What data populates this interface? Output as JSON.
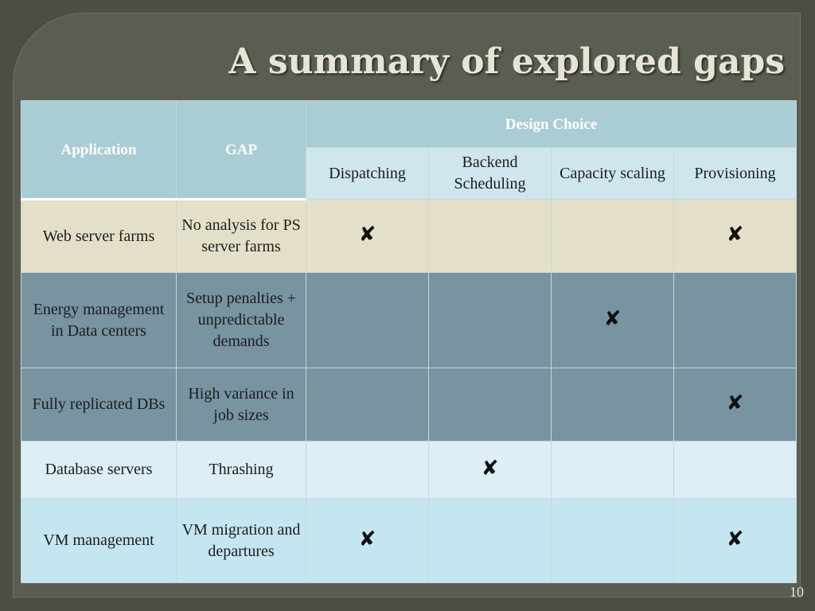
{
  "slide": {
    "title": "A summary of explored gaps",
    "page_number": "10"
  },
  "table": {
    "header": {
      "application": "Application",
      "gap": "GAP",
      "design_choice": "Design Choice",
      "columns": [
        "Dispatching",
        "Backend Scheduling",
        "Capacity scaling",
        "Provisioning"
      ]
    },
    "mark_symbol": "✘",
    "rows": [
      {
        "application": "Web server farms",
        "gap": "No analysis for PS server farms",
        "marks": [
          true,
          false,
          false,
          true
        ]
      },
      {
        "application": "Energy management in Data centers",
        "gap": "Setup penalties + unpredictable demands",
        "marks": [
          false,
          false,
          true,
          false
        ]
      },
      {
        "application": "Fully replicated DBs",
        "gap": "High variance in job sizes",
        "marks": [
          false,
          false,
          false,
          true
        ]
      },
      {
        "application": "Database servers",
        "gap": "Thrashing",
        "marks": [
          false,
          true,
          false,
          false
        ]
      },
      {
        "application": "VM management",
        "gap": "VM migration and departures",
        "marks": [
          true,
          false,
          false,
          true
        ]
      }
    ]
  },
  "colors": {
    "background": "#4b4e43",
    "header": "#a9ccd5",
    "row_beige": "#e4dfc8",
    "row_slate": "#7794a0",
    "row_pale": "#ddeef6",
    "row_light": "#c5e6f0"
  }
}
